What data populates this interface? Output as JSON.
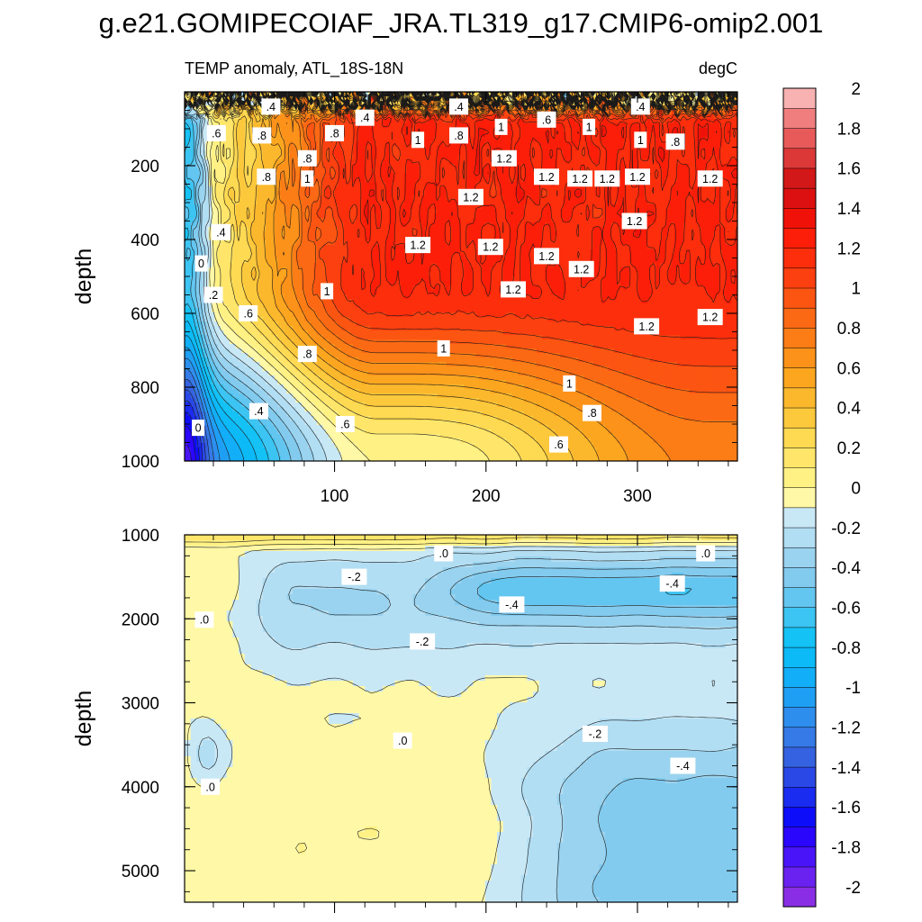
{
  "figure": {
    "title": "g.e21.GOMIPECOIAF_JRA.TL319_g17.CMIP6-omip2.001"
  },
  "chart_data": [
    {
      "type": "heatmap",
      "name": "upper-panel",
      "left_title": "TEMP anomaly, ATL_18S-18N",
      "right_title": "degC",
      "ylabel": "depth",
      "xlabel": "",
      "xlim": [
        1,
        366
      ],
      "ylim": [
        1000,
        0
      ],
      "xticks": [
        100,
        200,
        300
      ],
      "xtick_labels": [
        "100",
        "200",
        "300"
      ],
      "yticks": [
        200,
        400,
        600,
        800,
        1000
      ],
      "ytick_labels": [
        "200",
        "400",
        "600",
        "800",
        "1000"
      ],
      "contour_interval": 0.1,
      "contour_labels": [
        {
          "text": ".4",
          "x": 58,
          "y": 40
        },
        {
          "text": ".4",
          "x": 120,
          "y": 70
        },
        {
          "text": ".4",
          "x": 182,
          "y": 40
        },
        {
          "text": ".4",
          "x": 302,
          "y": 40
        },
        {
          "text": ".6",
          "x": 22,
          "y": 112
        },
        {
          "text": ".8",
          "x": 52,
          "y": 118
        },
        {
          "text": ".8",
          "x": 100,
          "y": 112
        },
        {
          "text": ".8",
          "x": 182,
          "y": 118
        },
        {
          "text": "1",
          "x": 210,
          "y": 95
        },
        {
          "text": ".6",
          "x": 240,
          "y": 75
        },
        {
          "text": "1",
          "x": 268,
          "y": 95
        },
        {
          "text": "1",
          "x": 302,
          "y": 130
        },
        {
          "text": ".8",
          "x": 325,
          "y": 135
        },
        {
          "text": "1",
          "x": 155,
          "y": 130
        },
        {
          "text": ".8",
          "x": 82,
          "y": 180
        },
        {
          "text": "1.2",
          "x": 212,
          "y": 180
        },
        {
          "text": ".8",
          "x": 55,
          "y": 230
        },
        {
          "text": "1",
          "x": 82,
          "y": 235
        },
        {
          "text": "1.2",
          "x": 240,
          "y": 230
        },
        {
          "text": "1.2",
          "x": 262,
          "y": 235
        },
        {
          "text": "1.2",
          "x": 280,
          "y": 235
        },
        {
          "text": "1.2",
          "x": 300,
          "y": 230
        },
        {
          "text": "1.2",
          "x": 348,
          "y": 235
        },
        {
          "text": "1.2",
          "x": 190,
          "y": 285
        },
        {
          "text": "1.2",
          "x": 298,
          "y": 350
        },
        {
          "text": ".4",
          "x": 25,
          "y": 380
        },
        {
          "text": "1.2",
          "x": 155,
          "y": 415
        },
        {
          "text": "1.2",
          "x": 203,
          "y": 420
        },
        {
          "text": "1.2",
          "x": 240,
          "y": 445
        },
        {
          "text": "1.2",
          "x": 263,
          "y": 480
        },
        {
          "text": "0",
          "x": 12,
          "y": 465
        },
        {
          "text": ".2",
          "x": 20,
          "y": 550
        },
        {
          "text": "1",
          "x": 95,
          "y": 540
        },
        {
          "text": "1.2",
          "x": 218,
          "y": 535
        },
        {
          "text": ".6",
          "x": 43,
          "y": 600
        },
        {
          "text": "1.2",
          "x": 306,
          "y": 635
        },
        {
          "text": "1.2",
          "x": 348,
          "y": 610
        },
        {
          "text": "1",
          "x": 172,
          "y": 695
        },
        {
          "text": ".8",
          "x": 82,
          "y": 710
        },
        {
          "text": "1",
          "x": 255,
          "y": 790
        },
        {
          "text": ".8",
          "x": 270,
          "y": 870
        },
        {
          "text": ".4",
          "x": 50,
          "y": 865
        },
        {
          "text": ".6",
          "x": 107,
          "y": 900
        },
        {
          "text": "0",
          "x": 10,
          "y": 910
        },
        {
          "text": ".6",
          "x": 248,
          "y": 955
        }
      ]
    },
    {
      "type": "heatmap",
      "name": "lower-panel",
      "ylabel": "depth",
      "xlim": [
        1,
        366
      ],
      "ylim": [
        5375,
        1000
      ],
      "yticks": [
        1000,
        2000,
        3000,
        4000,
        5000
      ],
      "ytick_labels": [
        "1000",
        "2000",
        "3000",
        "4000",
        "5000"
      ],
      "contour_interval": 0.1,
      "contour_labels": [
        {
          "text": ".0",
          "x": 172,
          "y": 1220
        },
        {
          "text": ".0",
          "x": 345,
          "y": 1220
        },
        {
          "text": "-.2",
          "x": 113,
          "y": 1500
        },
        {
          "text": "-.4",
          "x": 323,
          "y": 1580
        },
        {
          "text": "-.4",
          "x": 217,
          "y": 1830
        },
        {
          "text": ".0",
          "x": 14,
          "y": 2010
        },
        {
          "text": "-.2",
          "x": 158,
          "y": 2270
        },
        {
          "text": "-.2",
          "x": 272,
          "y": 3370
        },
        {
          "text": ".0",
          "x": 145,
          "y": 3450
        },
        {
          "text": "-.4",
          "x": 330,
          "y": 3750
        },
        {
          "text": ".0",
          "x": 18,
          "y": 4000
        }
      ]
    },
    {
      "type": "colorbar",
      "name": "colorbar",
      "levels": [
        -2.0,
        -1.9,
        -1.8,
        -1.7,
        -1.6,
        -1.5,
        -1.4,
        -1.3,
        -1.2,
        -1.1,
        -1.0,
        -0.9,
        -0.8,
        -0.7,
        -0.6,
        -0.5,
        -0.4,
        -0.3,
        -0.2,
        -0.1,
        0.0,
        0.1,
        0.2,
        0.3,
        0.4,
        0.5,
        0.6,
        0.7,
        0.8,
        0.9,
        1.0,
        1.1,
        1.2,
        1.3,
        1.4,
        1.5,
        1.6,
        1.7,
        1.8,
        1.9,
        2.0
      ],
      "colors": [
        "#8a2ee6",
        "#6a22f0",
        "#4a14f8",
        "#2a06fc",
        "#0e0dfa",
        "#1a2cf0",
        "#2a48e6",
        "#3562e0",
        "#357ae6",
        "#2e8eee",
        "#1f9ff4",
        "#12aef8",
        "#0cbaf7",
        "#14c2f5",
        "#3cc4f2",
        "#63c6f0",
        "#82cbef",
        "#9ad3ef",
        "#b2def3",
        "#c9e8f6",
        "#fff8a6",
        "#fff184",
        "#ffe66a",
        "#fed952",
        "#fdc93c",
        "#fcb82d",
        "#fca620",
        "#fc921a",
        "#fc7d16",
        "#fc6914",
        "#fc5512",
        "#fc4010",
        "#fc2e0c",
        "#fc1e08",
        "#f01208",
        "#dc1010",
        "#d21818",
        "#dc3838",
        "#e85a5a",
        "#f07e7e",
        "#f8b2b2"
      ],
      "labels": [
        "-2",
        "-1.8",
        "-1.6",
        "-1.4",
        "-1.2",
        "-1",
        "-0.8",
        "-0.6",
        "-0.4",
        "-0.2",
        "0",
        "0.2",
        "0.4",
        "0.6",
        "0.8",
        "1",
        "1.2",
        "1.4",
        "1.6",
        "1.8",
        "2"
      ]
    }
  ]
}
